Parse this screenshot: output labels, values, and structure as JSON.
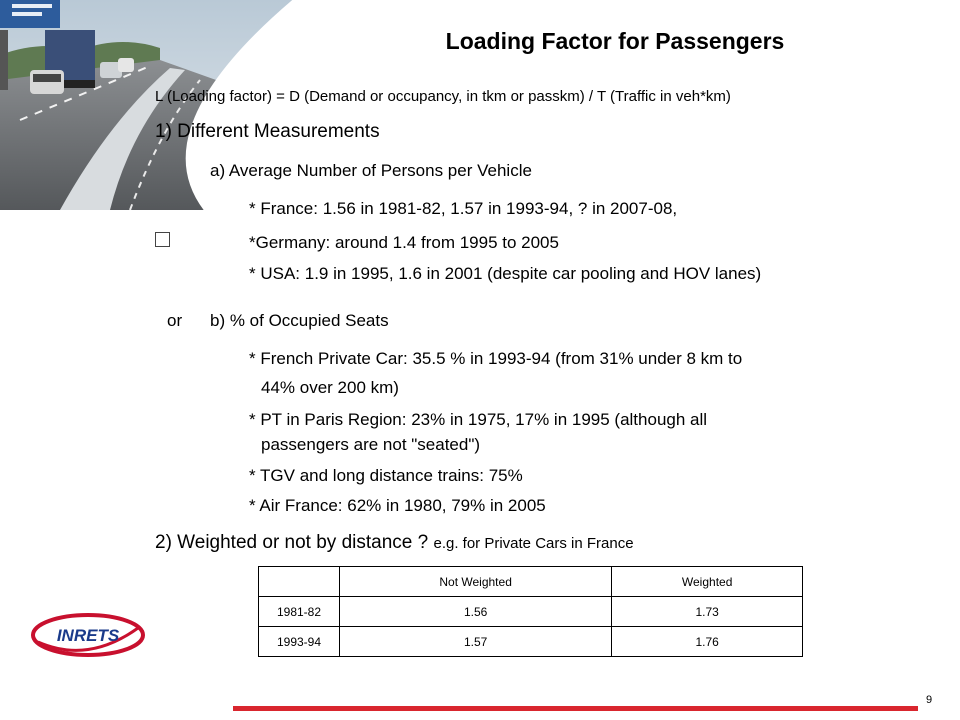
{
  "title": "Loading Factor for Passengers",
  "definition": "L (Loading factor) = D (Demand or occupancy, in tkm or passkm) / T (Traffic in veh*km)",
  "section1": {
    "heading": "1) Different Measurements",
    "a": {
      "label": "a) Average Number of Persons per Vehicle",
      "items": [
        "* France: 1.56 in 1981-82, 1.57 in 1993-94, ? in 2007-08,",
        "*Germany: around 1.4 from 1995 to 2005",
        "* USA: 1.9 in 1995, 1.6 in 2001 (despite car pooling and HOV lanes)"
      ]
    },
    "or_label": "or",
    "b": {
      "label": "b) % of Occupied Seats",
      "items": [
        "* French Private Car: 35.5 % in 1993-94 (from 31% under 8 km to",
        "44% over 200 km)",
        "* PT in Paris Region: 23% in 1975, 17% in 1995 (although all",
        "passengers are not \"seated\")",
        "* TGV and long distance trains: 75%",
        "* Air France: 62% in 1980, 79% in 2005"
      ]
    }
  },
  "section2": {
    "heading": "2) Weighted or not by distance ?",
    "suffix": "e.g. for Private Cars in France"
  },
  "table": {
    "headers": [
      "",
      "Not Weighted",
      "Weighted"
    ],
    "rows": [
      [
        "1981-82",
        "1.56",
        "1.73"
      ],
      [
        "1993-94",
        "1.57",
        "1.76"
      ]
    ]
  },
  "logo_text": "INRETS",
  "page_number": "9",
  "colors": {
    "accent_red": "#d9262e",
    "logo_red": "#c8102e"
  }
}
